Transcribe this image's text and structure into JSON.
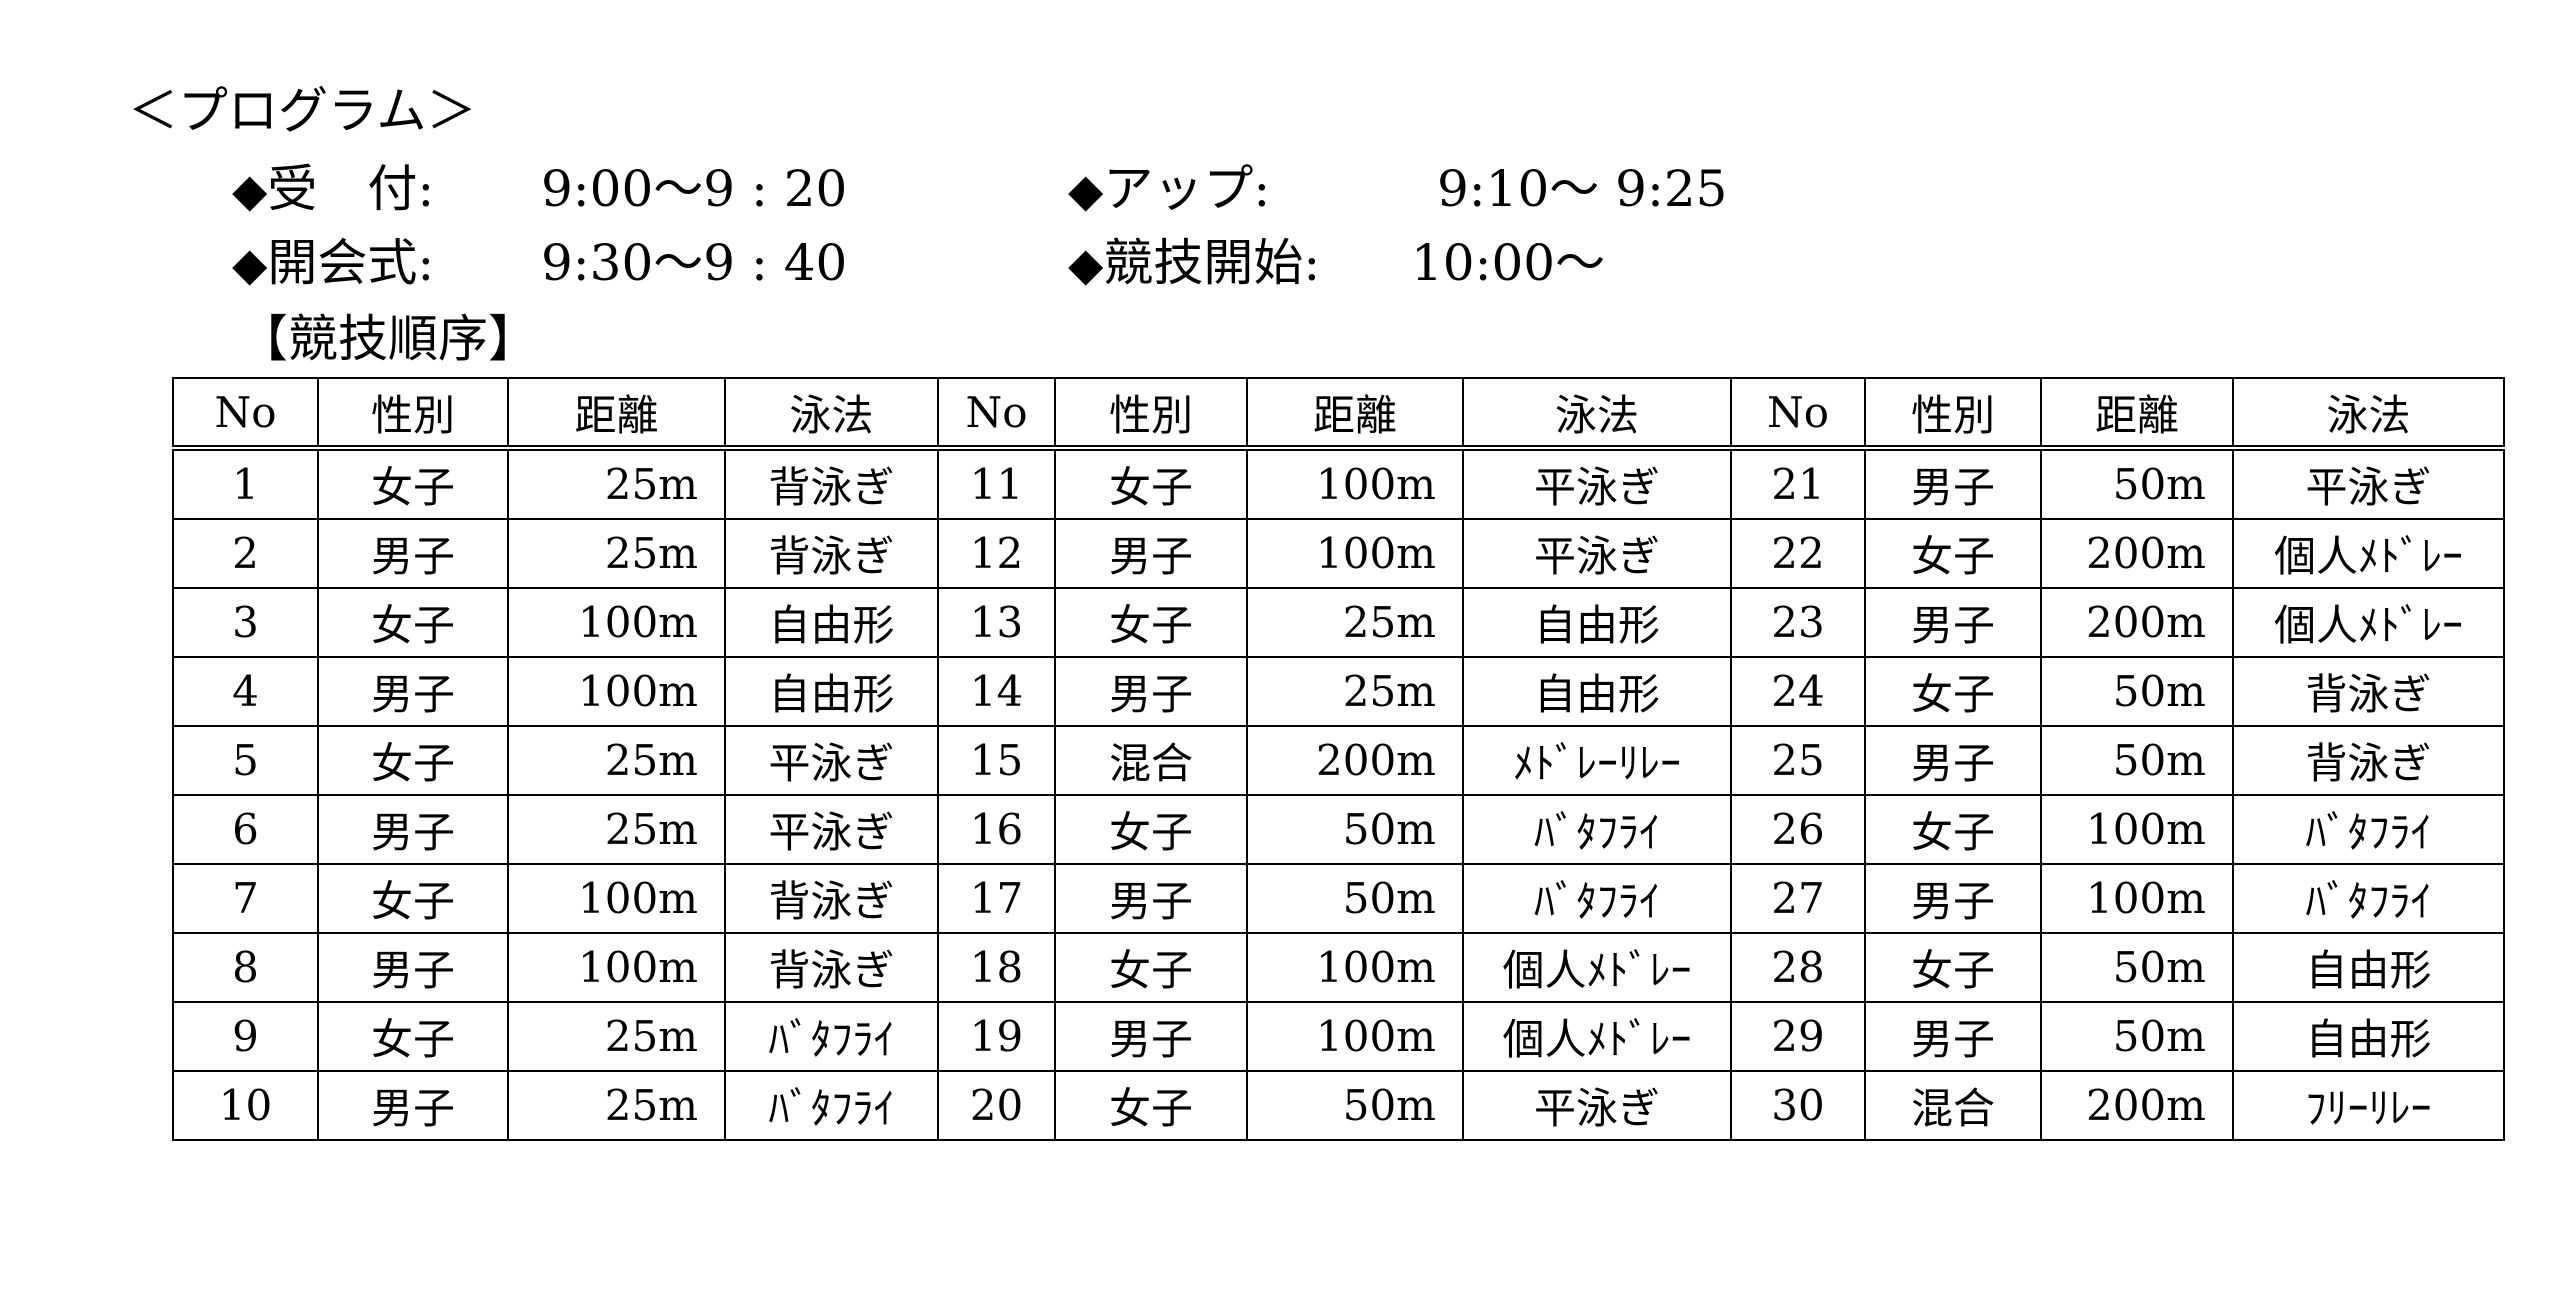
{
  "title": "＜プログラム＞",
  "schedule": [
    {
      "label": "受　付:",
      "time": "9:00～9 : 20"
    },
    {
      "label": "アップ:",
      "time": "9:10～ 9:25"
    },
    {
      "label": "開会式:",
      "time": "9:30～9 : 40"
    },
    {
      "label": "競技開始:",
      "time": "10:00～"
    }
  ],
  "bullet": "◆",
  "order_heading": "【競技順序】",
  "table": {
    "headers": [
      "No",
      "性別",
      "距離",
      "泳法"
    ],
    "rows": [
      [
        "1",
        "女子",
        "25m",
        "背泳ぎ"
      ],
      [
        "2",
        "男子",
        "25m",
        "背泳ぎ"
      ],
      [
        "3",
        "女子",
        "100m",
        "自由形"
      ],
      [
        "4",
        "男子",
        "100m",
        "自由形"
      ],
      [
        "5",
        "女子",
        "25m",
        "平泳ぎ"
      ],
      [
        "6",
        "男子",
        "25m",
        "平泳ぎ"
      ],
      [
        "7",
        "女子",
        "100m",
        "背泳ぎ"
      ],
      [
        "8",
        "男子",
        "100m",
        "背泳ぎ"
      ],
      [
        "9",
        "女子",
        "25m",
        "ﾊﾞﾀﾌﾗｲ"
      ],
      [
        "10",
        "男子",
        "25m",
        "ﾊﾞﾀﾌﾗｲ"
      ],
      [
        "11",
        "女子",
        "100m",
        "平泳ぎ"
      ],
      [
        "12",
        "男子",
        "100m",
        "平泳ぎ"
      ],
      [
        "13",
        "女子",
        "25m",
        "自由形"
      ],
      [
        "14",
        "男子",
        "25m",
        "自由形"
      ],
      [
        "15",
        "混合",
        "200m",
        "ﾒﾄﾞﾚｰﾘﾚｰ"
      ],
      [
        "16",
        "女子",
        "50m",
        "ﾊﾞﾀﾌﾗｲ"
      ],
      [
        "17",
        "男子",
        "50m",
        "ﾊﾞﾀﾌﾗｲ"
      ],
      [
        "18",
        "女子",
        "100m",
        "個人ﾒﾄﾞﾚｰ"
      ],
      [
        "19",
        "男子",
        "100m",
        "個人ﾒﾄﾞﾚｰ"
      ],
      [
        "20",
        "女子",
        "50m",
        "平泳ぎ"
      ],
      [
        "21",
        "男子",
        "50m",
        "平泳ぎ"
      ],
      [
        "22",
        "女子",
        "200m",
        "個人ﾒﾄﾞﾚｰ"
      ],
      [
        "23",
        "男子",
        "200m",
        "個人ﾒﾄﾞﾚｰ"
      ],
      [
        "24",
        "女子",
        "50m",
        "背泳ぎ"
      ],
      [
        "25",
        "男子",
        "50m",
        "背泳ぎ"
      ],
      [
        "26",
        "女子",
        "100m",
        "ﾊﾞﾀﾌﾗｲ"
      ],
      [
        "27",
        "男子",
        "100m",
        "ﾊﾞﾀﾌﾗｲ"
      ],
      [
        "28",
        "女子",
        "50m",
        "自由形"
      ],
      [
        "29",
        "男子",
        "50m",
        "自由形"
      ],
      [
        "30",
        "混合",
        "200m",
        "ﾌﾘｰﾘﾚｰ"
      ]
    ]
  }
}
